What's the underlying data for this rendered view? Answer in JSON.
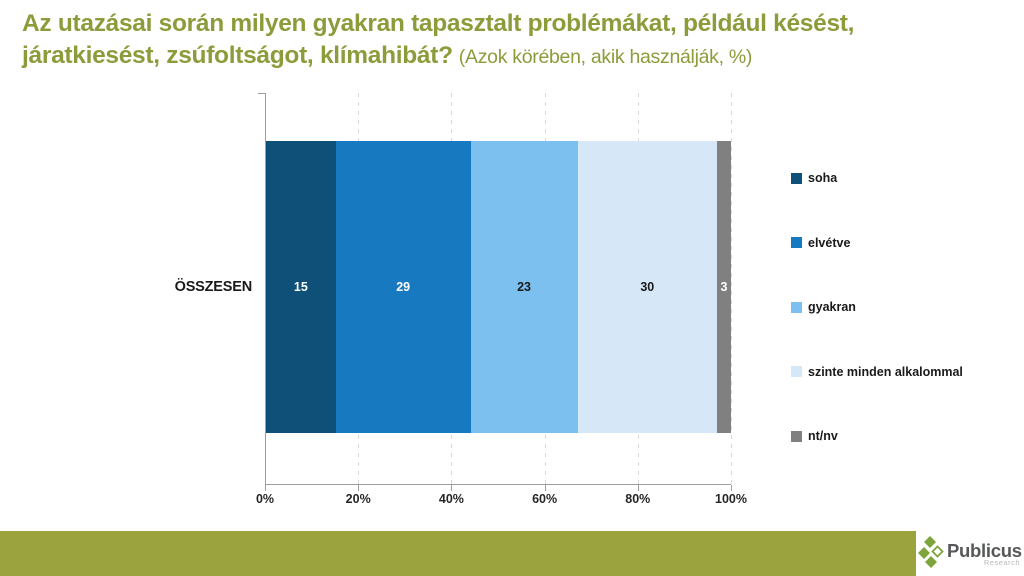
{
  "title": {
    "line1": "Az utazásai során milyen gyakran tapasztalt problémákat, például késést,",
    "line2": "járatkiesést, zsúfoltságot, klímahibát?",
    "subtitle": "(Azok körében, akik használják, %)"
  },
  "chart_data": {
    "type": "bar",
    "orientation": "horizontal",
    "stacked": true,
    "title": "Az utazásai során milyen gyakran tapasztalt problémákat, például késést, járatkiesést, zsúfoltságot, klímahibát? (Azok körében, akik használják, %)",
    "categories": [
      "ÖSSZESEN"
    ],
    "series": [
      {
        "name": "soha",
        "values": [
          15
        ],
        "color": "#0e5078",
        "label_color": "#ffffff"
      },
      {
        "name": "elvétve",
        "values": [
          29
        ],
        "color": "#1779bf",
        "label_color": "#ffffff"
      },
      {
        "name": "gyakran",
        "values": [
          23
        ],
        "color": "#7cc0ef",
        "label_color": "#1a1a1a"
      },
      {
        "name": "szinte minden alkalommal",
        "values": [
          30
        ],
        "color": "#d6e8f8",
        "label_color": "#1a1a1a"
      },
      {
        "name": "nt/nv",
        "values": [
          3
        ],
        "color": "#808080",
        "label_color": "#ffffff"
      }
    ],
    "xlim": [
      0,
      100
    ],
    "x_ticks": [
      "0%",
      "20%",
      "40%",
      "60%",
      "80%",
      "100%"
    ],
    "grid": "vertical-dashed",
    "legend_position": "right"
  },
  "footer": {
    "brand_name": "Publicus",
    "brand_sub": "Research"
  },
  "colors": {
    "title_green": "#8c9c3b",
    "footer_olive": "#9aa33e",
    "logo_green": "#7ea43c",
    "axis_gray": "#9d9d9d"
  }
}
